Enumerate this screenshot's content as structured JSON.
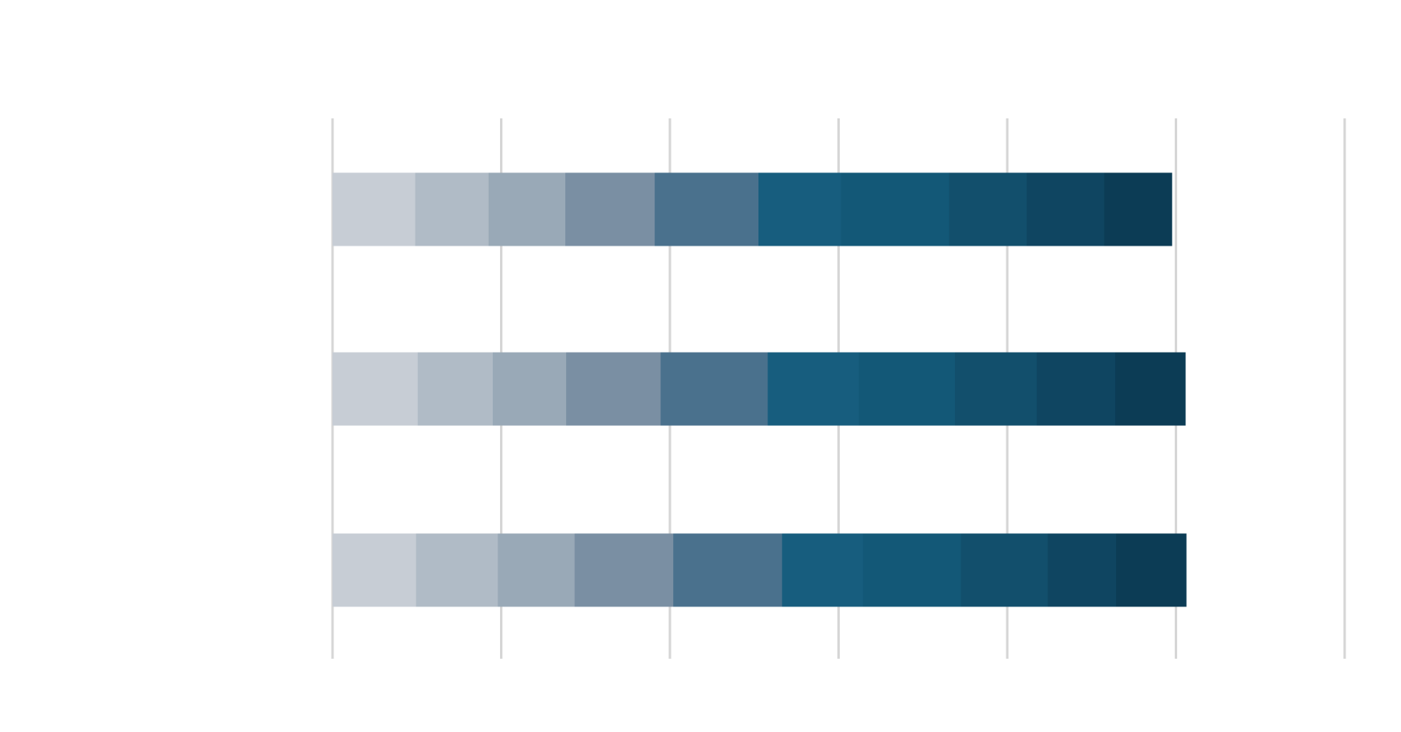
{
  "chart_data": {
    "type": "bar",
    "orientation": "horizontal",
    "stacked": true,
    "categories": [
      "",
      "",
      ""
    ],
    "xlim": [
      0,
      120
    ],
    "xticks": [
      0,
      20,
      40,
      60,
      80,
      100,
      120
    ],
    "grid": true,
    "series": [
      {
        "color": "#c7cdd5",
        "values": [
          9.8,
          10.1,
          9.9
        ]
      },
      {
        "color": "#b0bbc6",
        "values": [
          8.7,
          8.9,
          9.7
        ]
      },
      {
        "color": "#99a9b7",
        "values": [
          9.1,
          8.7,
          9.1
        ]
      },
      {
        "color": "#7a8fa3",
        "values": [
          10.6,
          11.2,
          11.7
        ]
      },
      {
        "color": "#4a718d",
        "values": [
          12.3,
          12.7,
          12.9
        ]
      },
      {
        "color": "#175d7e",
        "values": [
          9.8,
          10.8,
          9.6
        ]
      },
      {
        "color": "#135877",
        "values": [
          12.8,
          11.4,
          11.6
        ]
      },
      {
        "color": "#124f6c",
        "values": [
          9.2,
          9.7,
          10.3
        ]
      },
      {
        "color": "#0f4561",
        "values": [
          9.2,
          9.3,
          8.1
        ]
      },
      {
        "color": "#0c3c55",
        "values": [
          8.0,
          8.3,
          8.3
        ]
      }
    ]
  }
}
